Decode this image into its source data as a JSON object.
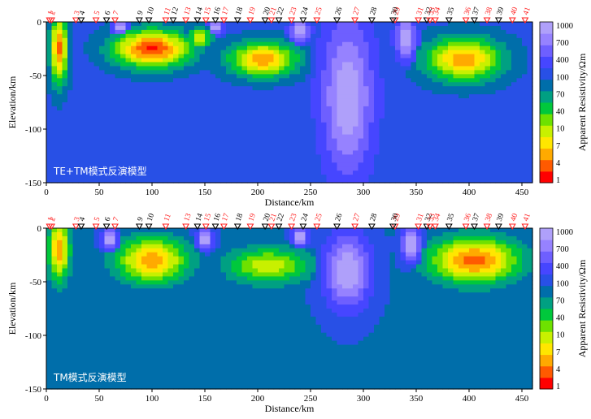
{
  "chart_data": [
    {
      "type": "heatmap",
      "panel_title": "TE+TM模式反演模型",
      "xlabel": "Distance/km",
      "ylabel": "Elevation/km",
      "xlim": [
        0,
        460
      ],
      "ylim": [
        -150,
        0
      ],
      "x_ticks": [
        0,
        50,
        100,
        150,
        200,
        250,
        300,
        350,
        400,
        450
      ],
      "y_ticks": [
        0,
        -50,
        -100,
        -150
      ],
      "stations": [
        {
          "id": "1",
          "x": 3,
          "color": "red"
        },
        {
          "id": "2",
          "x": 5,
          "color": "red"
        },
        {
          "id": "3",
          "x": 28,
          "color": "red"
        },
        {
          "id": "4",
          "x": 33,
          "color": "black"
        },
        {
          "id": "5",
          "x": 47,
          "color": "red"
        },
        {
          "id": "6",
          "x": 57,
          "color": "black"
        },
        {
          "id": "7",
          "x": 65,
          "color": "red"
        },
        {
          "id": "9",
          "x": 88,
          "color": "black"
        },
        {
          "id": "10",
          "x": 97,
          "color": "black"
        },
        {
          "id": "11",
          "x": 113,
          "color": "red"
        },
        {
          "id": "12",
          "x": 120,
          "color": "black"
        },
        {
          "id": "13",
          "x": 132,
          "color": "red"
        },
        {
          "id": "14",
          "x": 143,
          "color": "black"
        },
        {
          "id": "15",
          "x": 151,
          "color": "red"
        },
        {
          "id": "16",
          "x": 160,
          "color": "black"
        },
        {
          "id": "17",
          "x": 168,
          "color": "red"
        },
        {
          "id": "18",
          "x": 181,
          "color": "black"
        },
        {
          "id": "19",
          "x": 193,
          "color": "red"
        },
        {
          "id": "20",
          "x": 207,
          "color": "black"
        },
        {
          "id": "21",
          "x": 213,
          "color": "red"
        },
        {
          "id": "22",
          "x": 220,
          "color": "black"
        },
        {
          "id": "23",
          "x": 232,
          "color": "red"
        },
        {
          "id": "24",
          "x": 243,
          "color": "black"
        },
        {
          "id": "25",
          "x": 256,
          "color": "red"
        },
        {
          "id": "26",
          "x": 275,
          "color": "black"
        },
        {
          "id": "27",
          "x": 292,
          "color": "red"
        },
        {
          "id": "28",
          "x": 308,
          "color": "black"
        },
        {
          "id": "29",
          "x": 330,
          "color": "red"
        },
        {
          "id": "30",
          "x": 328,
          "color": "black"
        },
        {
          "id": "31",
          "x": 352,
          "color": "red"
        },
        {
          "id": "32",
          "x": 360,
          "color": "black"
        },
        {
          "id": "33",
          "x": 363,
          "color": "red"
        },
        {
          "id": "34",
          "x": 368,
          "color": "red"
        },
        {
          "id": "35",
          "x": 381,
          "color": "black"
        },
        {
          "id": "36",
          "x": 397,
          "color": "red"
        },
        {
          "id": "37",
          "x": 405,
          "color": "black"
        },
        {
          "id": "38",
          "x": 417,
          "color": "red"
        },
        {
          "id": "39",
          "x": 428,
          "color": "black"
        },
        {
          "id": "40",
          "x": 441,
          "color": "red"
        },
        {
          "id": "41",
          "x": 453,
          "color": "red"
        }
      ],
      "anomalies": [
        {
          "x": 12,
          "z": -25,
          "rx": 10,
          "rz": 40,
          "log10rho": 0.35
        },
        {
          "x": 100,
          "z": -25,
          "rx": 45,
          "rz": 22,
          "log10rho": 0.2
        },
        {
          "x": 145,
          "z": -15,
          "rx": 15,
          "rz": 12,
          "log10rho": 0.9
        },
        {
          "x": 205,
          "z": -35,
          "rx": 40,
          "rz": 20,
          "log10rho": 0.5
        },
        {
          "x": 395,
          "z": -35,
          "rx": 45,
          "rz": 25,
          "log10rho": 0.5
        },
        {
          "x": 285,
          "z": -70,
          "rx": 30,
          "rz": 90,
          "log10rho": 3.0
        },
        {
          "x": 340,
          "z": -15,
          "rx": 12,
          "rz": 25,
          "log10rho": 3.0
        },
        {
          "x": 240,
          "z": -8,
          "rx": 12,
          "rz": 12,
          "log10rho": 3.0
        },
        {
          "x": 70,
          "z": -5,
          "rx": 8,
          "rz": 8,
          "log10rho": 3.0
        },
        {
          "x": 160,
          "z": -5,
          "rx": 8,
          "rz": 8,
          "log10rho": 3.0
        }
      ],
      "background_log10rho": 2.0
    },
    {
      "type": "heatmap",
      "panel_title": "TM模式反演模型",
      "xlabel": "Distance/km",
      "ylabel": "Elevation/km",
      "xlim": [
        0,
        460
      ],
      "ylim": [
        -150,
        0
      ],
      "x_ticks": [
        0,
        50,
        100,
        150,
        200,
        250,
        300,
        350,
        400,
        450
      ],
      "y_ticks": [
        0,
        -50,
        -100,
        -150
      ],
      "stations": [
        {
          "id": "1",
          "x": 3,
          "color": "red"
        },
        {
          "id": "2",
          "x": 5,
          "color": "red"
        },
        {
          "id": "3",
          "x": 28,
          "color": "red"
        },
        {
          "id": "4",
          "x": 33,
          "color": "black"
        },
        {
          "id": "5",
          "x": 47,
          "color": "red"
        },
        {
          "id": "6",
          "x": 57,
          "color": "black"
        },
        {
          "id": "7",
          "x": 65,
          "color": "red"
        },
        {
          "id": "9",
          "x": 88,
          "color": "black"
        },
        {
          "id": "10",
          "x": 97,
          "color": "black"
        },
        {
          "id": "11",
          "x": 113,
          "color": "red"
        },
        {
          "id": "13",
          "x": 132,
          "color": "red"
        },
        {
          "id": "14",
          "x": 143,
          "color": "black"
        },
        {
          "id": "15",
          "x": 151,
          "color": "red"
        },
        {
          "id": "16",
          "x": 160,
          "color": "black"
        },
        {
          "id": "17",
          "x": 168,
          "color": "red"
        },
        {
          "id": "18",
          "x": 181,
          "color": "black"
        },
        {
          "id": "19",
          "x": 193,
          "color": "red"
        },
        {
          "id": "20",
          "x": 207,
          "color": "black"
        },
        {
          "id": "21",
          "x": 213,
          "color": "red"
        },
        {
          "id": "22",
          "x": 220,
          "color": "black"
        },
        {
          "id": "23",
          "x": 232,
          "color": "red"
        },
        {
          "id": "24",
          "x": 243,
          "color": "black"
        },
        {
          "id": "25",
          "x": 256,
          "color": "red"
        },
        {
          "id": "26",
          "x": 275,
          "color": "black"
        },
        {
          "id": "27",
          "x": 292,
          "color": "red"
        },
        {
          "id": "28",
          "x": 308,
          "color": "black"
        },
        {
          "id": "29",
          "x": 330,
          "color": "red"
        },
        {
          "id": "30",
          "x": 328,
          "color": "black"
        },
        {
          "id": "31",
          "x": 352,
          "color": "red"
        },
        {
          "id": "32",
          "x": 360,
          "color": "black"
        },
        {
          "id": "33",
          "x": 363,
          "color": "red"
        },
        {
          "id": "34",
          "x": 368,
          "color": "red"
        },
        {
          "id": "35",
          "x": 381,
          "color": "black"
        },
        {
          "id": "36",
          "x": 397,
          "color": "red"
        },
        {
          "id": "37",
          "x": 405,
          "color": "black"
        },
        {
          "id": "38",
          "x": 417,
          "color": "red"
        },
        {
          "id": "39",
          "x": 428,
          "color": "black"
        },
        {
          "id": "40",
          "x": 441,
          "color": "red"
        },
        {
          "id": "41",
          "x": 453,
          "color": "red"
        }
      ],
      "anomalies": [
        {
          "x": 12,
          "z": -20,
          "rx": 12,
          "rz": 35,
          "log10rho": 0.5
        },
        {
          "x": 100,
          "z": -30,
          "rx": 40,
          "rz": 25,
          "log10rho": 0.5
        },
        {
          "x": 210,
          "z": -35,
          "rx": 45,
          "rz": 20,
          "log10rho": 0.9
        },
        {
          "x": 405,
          "z": -30,
          "rx": 50,
          "rz": 25,
          "log10rho": 0.3
        },
        {
          "x": 285,
          "z": -40,
          "rx": 28,
          "rz": 45,
          "log10rho": 3.0
        },
        {
          "x": 345,
          "z": -15,
          "rx": 12,
          "rz": 20,
          "log10rho": 3.0
        },
        {
          "x": 240,
          "z": -8,
          "rx": 10,
          "rz": 12,
          "log10rho": 3.0
        },
        {
          "x": 60,
          "z": -10,
          "rx": 10,
          "rz": 12,
          "log10rho": 3.0
        },
        {
          "x": 150,
          "z": -10,
          "rx": 10,
          "rz": 12,
          "log10rho": 3.0
        }
      ],
      "background_log10rho": 1.9
    }
  ],
  "colorbar": {
    "label": "Apparent Resistivity/Ωm",
    "ticks": [
      "1000",
      "700",
      "400",
      "100",
      "70",
      "40",
      "10",
      "7",
      "4",
      "1"
    ],
    "log10_range": [
      0,
      3
    ]
  }
}
